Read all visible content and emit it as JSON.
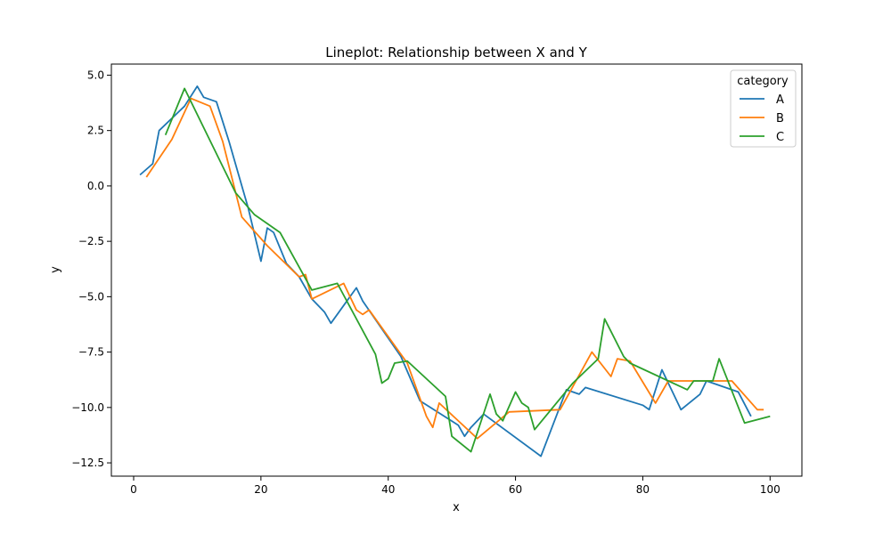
{
  "chart_data": {
    "type": "line",
    "title": "Lineplot: Relationship between X and Y",
    "xlabel": "x",
    "ylabel": "y",
    "xlim": [
      -3.5,
      105
    ],
    "ylim": [
      -13.1,
      5.5
    ],
    "x_ticks": [
      0,
      20,
      40,
      60,
      80,
      100
    ],
    "y_ticks": [
      5.0,
      2.5,
      0.0,
      -2.5,
      -5.0,
      -7.5,
      -10.0,
      -12.5
    ],
    "x_tick_labels": [
      "0",
      "20",
      "40",
      "60",
      "80",
      "100"
    ],
    "y_tick_labels": [
      "5.0",
      "2.5",
      "0.0",
      "−2.5",
      "−5.0",
      "−7.5",
      "−10.0",
      "−12.5"
    ],
    "grid": false,
    "legend": {
      "title": "category",
      "position": "top-right"
    },
    "series": [
      {
        "name": "A",
        "color": "#1f77b4",
        "points": [
          [
            1,
            0.5
          ],
          [
            3,
            1.0
          ],
          [
            4,
            2.5
          ],
          [
            8,
            3.6
          ],
          [
            10,
            4.5
          ],
          [
            11,
            4.0
          ],
          [
            13,
            3.8
          ],
          [
            15,
            2.0
          ],
          [
            17,
            0.0
          ],
          [
            18,
            -1.0
          ],
          [
            20,
            -3.4
          ],
          [
            21,
            -1.9
          ],
          [
            22,
            -2.1
          ],
          [
            24,
            -3.5
          ],
          [
            26,
            -4.1
          ],
          [
            28,
            -5.1
          ],
          [
            29,
            -5.4
          ],
          [
            30,
            -5.7
          ],
          [
            31,
            -6.2
          ],
          [
            35,
            -4.6
          ],
          [
            36,
            -5.2
          ],
          [
            42,
            -7.7
          ],
          [
            45,
            -9.7
          ],
          [
            51,
            -10.8
          ],
          [
            52,
            -11.3
          ],
          [
            53,
            -10.9
          ],
          [
            55,
            -10.3
          ],
          [
            64,
            -12.2
          ],
          [
            68,
            -9.2
          ],
          [
            70,
            -9.4
          ],
          [
            71,
            -9.1
          ],
          [
            80,
            -9.9
          ],
          [
            81,
            -10.1
          ],
          [
            83,
            -8.3
          ],
          [
            86,
            -10.1
          ],
          [
            89,
            -9.4
          ],
          [
            90,
            -8.8
          ],
          [
            95,
            -9.3
          ],
          [
            97,
            -10.4
          ]
        ]
      },
      {
        "name": "B",
        "color": "#ff7f0e",
        "points": [
          [
            2,
            0.4
          ],
          [
            6,
            2.1
          ],
          [
            9,
            3.95
          ],
          [
            12,
            3.6
          ],
          [
            14,
            2.0
          ],
          [
            17,
            -1.4
          ],
          [
            21,
            -2.7
          ],
          [
            26,
            -4.1
          ],
          [
            27,
            -4.0
          ],
          [
            28,
            -5.1
          ],
          [
            33,
            -4.4
          ],
          [
            35,
            -5.6
          ],
          [
            36,
            -5.8
          ],
          [
            37,
            -5.6
          ],
          [
            43,
            -8.0
          ],
          [
            46,
            -10.4
          ],
          [
            47,
            -10.9
          ],
          [
            48,
            -9.8
          ],
          [
            54,
            -11.4
          ],
          [
            59,
            -10.2
          ],
          [
            67,
            -10.1
          ],
          [
            72,
            -7.5
          ],
          [
            75,
            -8.6
          ],
          [
            76,
            -7.8
          ],
          [
            78,
            -7.9
          ],
          [
            82,
            -9.8
          ],
          [
            84,
            -8.8
          ],
          [
            94,
            -8.8
          ],
          [
            98,
            -10.1
          ],
          [
            99,
            -10.1
          ]
        ]
      },
      {
        "name": "C",
        "color": "#2ca02c",
        "points": [
          [
            5,
            2.3
          ],
          [
            8,
            4.4
          ],
          [
            16,
            -0.3
          ],
          [
            19,
            -1.3
          ],
          [
            23,
            -2.1
          ],
          [
            28,
            -4.7
          ],
          [
            32,
            -4.4
          ],
          [
            38,
            -7.6
          ],
          [
            39,
            -8.9
          ],
          [
            40,
            -8.7
          ],
          [
            41,
            -8.0
          ],
          [
            43,
            -7.9
          ],
          [
            49,
            -9.5
          ],
          [
            50,
            -11.3
          ],
          [
            53,
            -12.0
          ],
          [
            56,
            -9.4
          ],
          [
            57,
            -10.3
          ],
          [
            58,
            -10.6
          ],
          [
            60,
            -9.3
          ],
          [
            61,
            -9.8
          ],
          [
            62,
            -10.0
          ],
          [
            63,
            -11.0
          ],
          [
            69,
            -8.9
          ],
          [
            73,
            -7.8
          ],
          [
            74,
            -6.0
          ],
          [
            77,
            -7.7
          ],
          [
            78,
            -8.0
          ],
          [
            87,
            -9.2
          ],
          [
            88,
            -8.8
          ],
          [
            91,
            -8.8
          ],
          [
            92,
            -7.8
          ],
          [
            96,
            -10.7
          ],
          [
            100,
            -10.4
          ]
        ]
      }
    ]
  }
}
